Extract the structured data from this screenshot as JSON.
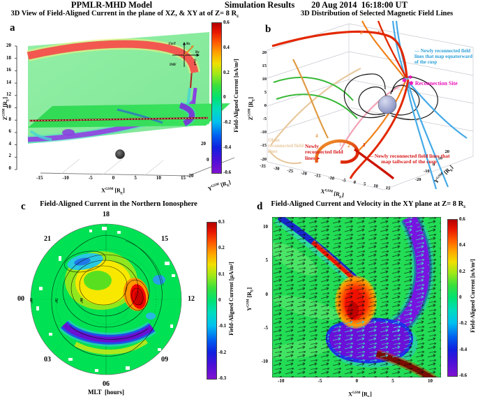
{
  "header": {
    "model": "PPMLR-MHD Model",
    "results": "Simulation Results",
    "datetime": "20 Aug 2014  16:18:00 UT"
  },
  "panel_a": {
    "letter": "a",
    "title_main": "3D View of Field-Aligned Current in the plane of XZ, & XY at of Z= 8 R",
    "title_sub": "E",
    "z_ticks": [
      "20",
      "18",
      "16",
      "14",
      "12",
      "10",
      "8",
      "6",
      "4",
      "2",
      "0"
    ],
    "x_ticks": [
      "-15",
      "-10",
      "-5",
      "0",
      "5",
      "10",
      "15"
    ],
    "y_ticks": [
      "20",
      "0",
      "-20"
    ],
    "x_label": {
      "base": "X",
      "sup": "GSM",
      "unit": " [R",
      "sub": "E",
      "close": "]"
    },
    "y_label": {
      "base": "Y",
      "sup": "GSM",
      "unit": " [R",
      "sub": "E",
      "close": "]"
    },
    "z_label": {
      "base": "Z",
      "sup": "GSM",
      "unit": " [R",
      "sub": "E",
      "close": "]"
    },
    "colorbar": {
      "ticks": [
        "0.6",
        "0.4",
        "0.2",
        "0",
        "-0.2",
        "-0.4",
        "-0.6"
      ],
      "label": "Field-Aligned Current [nA/m²]"
    },
    "imf": {
      "scale_top": "15nT",
      "bz": "Bz",
      "by": "By",
      "scale_right": "15nT",
      "label": "IMF"
    }
  },
  "panel_b": {
    "letter": "b",
    "title": "3D Distribution of Selected Magnetic Field Lines",
    "z_ticks": [
      "20",
      "15",
      "10",
      "5",
      "0",
      "-5",
      "-10",
      "-15",
      "-20"
    ],
    "x_ticks": [
      "-35",
      "-30",
      "-25",
      "-20",
      "-15",
      "-10",
      "-5",
      "0",
      "5",
      "10",
      "15"
    ],
    "y_ticks": [
      "-20",
      "-10",
      "0",
      "10",
      "20"
    ],
    "x_label": {
      "base": "X",
      "sup": "GSM",
      "unit": " [R",
      "sub": "E",
      "close": "]"
    },
    "y_label": {
      "base": "Y",
      "sup": "GSM",
      "unit": " [R",
      "sub": "E",
      "close": "]"
    },
    "z_label": {
      "base": "Z",
      "sup": "GSM",
      "unit": " [R",
      "sub": "E",
      "close": "]"
    },
    "dash": "—",
    "legend_blue": "Newly reconnected field lines that map equatorward of the cusp",
    "reconnection_marker": "✱",
    "reconnection_label": "Reconnection Site",
    "older_label": "Older reconnected field lines",
    "newly_label": "Newly reconnected field lines",
    "newly_arrow": "➤",
    "legend_red": "Newly reconnected field lines that map tailward of the cusp",
    "line_labels": [
      "2'",
      "1'",
      "4",
      "1",
      "2",
      "1"
    ]
  },
  "panel_c": {
    "letter": "c",
    "title": "Field-Aligned Current in the Northern Ionosphere",
    "mlt_labels": [
      "18",
      "21",
      "15",
      "00",
      "12",
      "03",
      "09",
      "06"
    ],
    "mlt_axis_label": "MLT  [hours]",
    "lat_labels": [
      "60°",
      "70°",
      "80°"
    ],
    "colorbar": {
      "ticks": [
        "0.3",
        "0.2",
        "0.1",
        "0",
        "-0.1",
        "-0.2",
        "-0.3"
      ],
      "label": "Field-Aligned Current [μA/m²]"
    }
  },
  "panel_d": {
    "letter": "d",
    "title_main": "Field-Aligned Current and Velocity in the XY plane at Z= 8 R",
    "title_sub": "E",
    "x_ticks": [
      "-10",
      "-5",
      "0",
      "5",
      "10"
    ],
    "y_ticks": [
      "10",
      "5",
      "0",
      "-5",
      "-10"
    ],
    "x_label": {
      "base": "X",
      "sup": "GSM",
      "unit": " [R",
      "sub": "E",
      "close": "]"
    },
    "y_label": {
      "base": "Y",
      "sup": "GSM",
      "unit": " [R",
      "sub": "E",
      "close": "]"
    },
    "colorbar": {
      "ticks": [
        "0.6",
        "0.4",
        "0.2",
        "0",
        "-0.2",
        "-0.4",
        "-0.6"
      ],
      "label": "Field-Aligned Current [nA/m²]"
    }
  },
  "colors": {
    "jet_top": "#b40000",
    "jet_zero_green": "#00e273",
    "jet_bottom": "#8012d0",
    "annotation_blue": "#2a9fd8",
    "annotation_magenta": "#ea12b8",
    "annotation_red": "#d81818",
    "annotation_tan": "#e8c9a0",
    "field_line_blue": "#44aae8",
    "field_line_red": "#e22800",
    "field_line_orange": "#f08018",
    "field_line_green": "#38b838",
    "field_line_pink": "#f0a0b4",
    "earth_lavender": "#9aa2cc"
  },
  "chart_data": [
    {
      "panel": "a",
      "type": "heatmap",
      "subtype": "3D cut planes XZ and XY",
      "title": "3D View of Field-Aligned Current in the plane of XZ, & XY at of Z= 8 RE",
      "x_axis": {
        "label": "XGSM [RE]",
        "ticks": [
          -15,
          -10,
          -5,
          0,
          5,
          10,
          15
        ]
      },
      "y_axis": {
        "label": "YGSM [RE]",
        "ticks": [
          20,
          0,
          -20
        ]
      },
      "z_axis": {
        "label": "ZGSM [RE]",
        "ticks": [
          0,
          2,
          4,
          6,
          8,
          10,
          12,
          14,
          16,
          18,
          20
        ]
      },
      "colorbar": {
        "label": "Field-Aligned Current [nA/m²]",
        "min": -0.6,
        "max": 0.6,
        "ticks": [
          0.6,
          0.4,
          0.2,
          0,
          -0.2,
          -0.4,
          -0.6
        ]
      },
      "imf_inset": {
        "axes": [
          "Bz",
          "By"
        ],
        "scale": "15nT",
        "label": "IMF"
      }
    },
    {
      "panel": "b",
      "type": "line",
      "subtype": "3D magnetic field lines",
      "title": "3D Distribution of Selected Magnetic Field Lines",
      "datetime": "20 Aug 2014 16:18:00 UT",
      "x_axis": {
        "label": "XGSM [RE]",
        "ticks": [
          -35,
          -30,
          -25,
          -20,
          -15,
          -10,
          -5,
          0,
          5,
          10,
          15
        ]
      },
      "y_axis": {
        "label": "YGSM [RE]",
        "ticks": [
          -20,
          -10,
          0,
          10,
          20
        ]
      },
      "z_axis": {
        "label": "ZGSM [RE]",
        "ticks": [
          20,
          15,
          10,
          5,
          0,
          -5,
          -10,
          -15,
          -20
        ]
      },
      "line_groups": [
        {
          "label": "Newly reconnected field lines that map equatorward of the cusp",
          "color": "#44aae8"
        },
        {
          "label": "Newly reconnected field lines that map tailward of the cusp",
          "color": "#e22800"
        },
        {
          "label": "Newly reconnected field lines",
          "color": "#e22800"
        },
        {
          "label": "Older reconnected field lines",
          "color": "#e8c9a0"
        }
      ],
      "markers": [
        {
          "label": "Reconnection Site",
          "symbol": "star",
          "color": "#ea12b8"
        }
      ],
      "line_numbers": [
        "1",
        "2",
        "4",
        "1'",
        "2'"
      ]
    },
    {
      "panel": "c",
      "type": "heatmap",
      "projection": "polar",
      "title": "Field-Aligned Current in the Northern Ionosphere",
      "angular_axis": {
        "label": "MLT [hours]",
        "ticks": [
          "18",
          "21",
          "15",
          "00",
          "12",
          "03",
          "09",
          "06"
        ]
      },
      "radial_axis": {
        "ticks": [
          "60°",
          "70°",
          "80°"
        ]
      },
      "colorbar": {
        "label": "Field-Aligned Current [μA/m²]",
        "min": -0.3,
        "max": 0.3,
        "ticks": [
          0.3,
          0.2,
          0.1,
          0,
          -0.1,
          -0.2,
          -0.3
        ]
      }
    },
    {
      "panel": "d",
      "type": "heatmap",
      "subtype": "field-aligned current with velocity quiver",
      "title": "Field-Aligned Current and Velocity in the XY plane at Z= 8 RE",
      "x_axis": {
        "label": "XGSM [RE]",
        "ticks": [
          -10,
          -5,
          0,
          5,
          10
        ]
      },
      "y_axis": {
        "label": "YGSM [RE]",
        "ticks": [
          10,
          5,
          0,
          -5,
          -10
        ]
      },
      "colorbar": {
        "label": "Field-Aligned Current [nA/m²]",
        "min": -0.6,
        "max": 0.6,
        "ticks": [
          0.6,
          0.4,
          0.2,
          0,
          -0.2,
          -0.4,
          -0.6
        ]
      }
    }
  ]
}
